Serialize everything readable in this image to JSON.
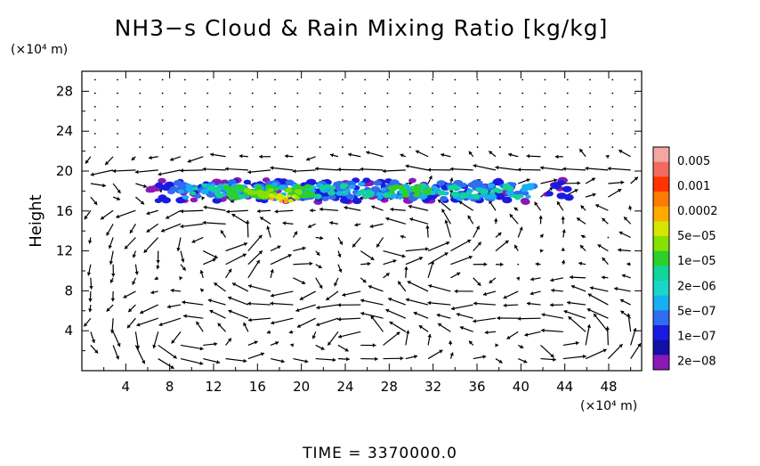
{
  "chart_data": {
    "type": "heatmap",
    "title": "NH3−s Cloud & Rain Mixing Ratio [kg/kg]",
    "ylabel": "Height",
    "y_unit": "(×10⁴ m)",
    "x_unit": "(×10⁴ m)",
    "x_ticks": [
      "4",
      "8",
      "12",
      "16",
      "20",
      "24",
      "28",
      "32",
      "36",
      "40",
      "44",
      "48"
    ],
    "y_ticks": [
      "4",
      "8",
      "12",
      "16",
      "20",
      "24",
      "28"
    ],
    "xlim": [
      0,
      51
    ],
    "ylim": [
      0,
      30
    ],
    "footer": "TIME = 3370000.0",
    "colorbar": {
      "labels": [
        "0.005",
        "0.001",
        "0.0002",
        "5e−05",
        "1e−05",
        "2e−06",
        "5e−07",
        "1e−07",
        "2e−08"
      ],
      "colors": [
        "#f4a6a0",
        "#f26b5e",
        "#ff3300",
        "#ff7a00",
        "#ffaa00",
        "#d6e600",
        "#86e000",
        "#2ccf2c",
        "#10d49a",
        "#19d6c8",
        "#18aef2",
        "#2f6cf0",
        "#1a1adf",
        "#1010a8",
        "#8a19b5"
      ]
    },
    "cloud_layer": {
      "x_range": [
        6,
        45
      ],
      "y_range": [
        16.8,
        19.2
      ],
      "core_x": [
        13,
        21
      ],
      "core_secondary_x": [
        28,
        32
      ]
    },
    "wind_vectors": "present"
  }
}
